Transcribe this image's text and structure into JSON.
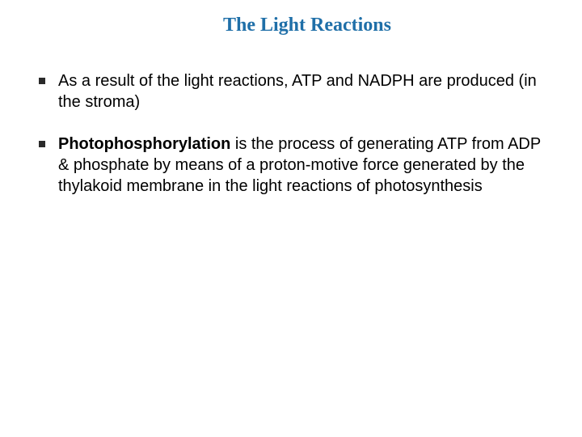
{
  "slide": {
    "title": "The Light Reactions",
    "title_color": "#1f6fa8",
    "title_fontsize": 24,
    "title_font": "Georgia",
    "background_color": "#ffffff",
    "body_font": "Verdana",
    "body_fontsize": 20,
    "body_color": "#000000",
    "bullet_marker_color": "#2a2a2a",
    "bullets": [
      {
        "parts": [
          {
            "text": "As a result of the light reactions, ATP and NADPH are produced (in the stroma)",
            "bold": false
          }
        ]
      },
      {
        "parts": [
          {
            "text": "Photophosphorylation",
            "bold": true
          },
          {
            "text": " is the process of generating ATP from ADP & phosphate by means of a proton-motive force generated by the thylakoid membrane in the light reactions of photosynthesis",
            "bold": false
          }
        ]
      }
    ]
  }
}
